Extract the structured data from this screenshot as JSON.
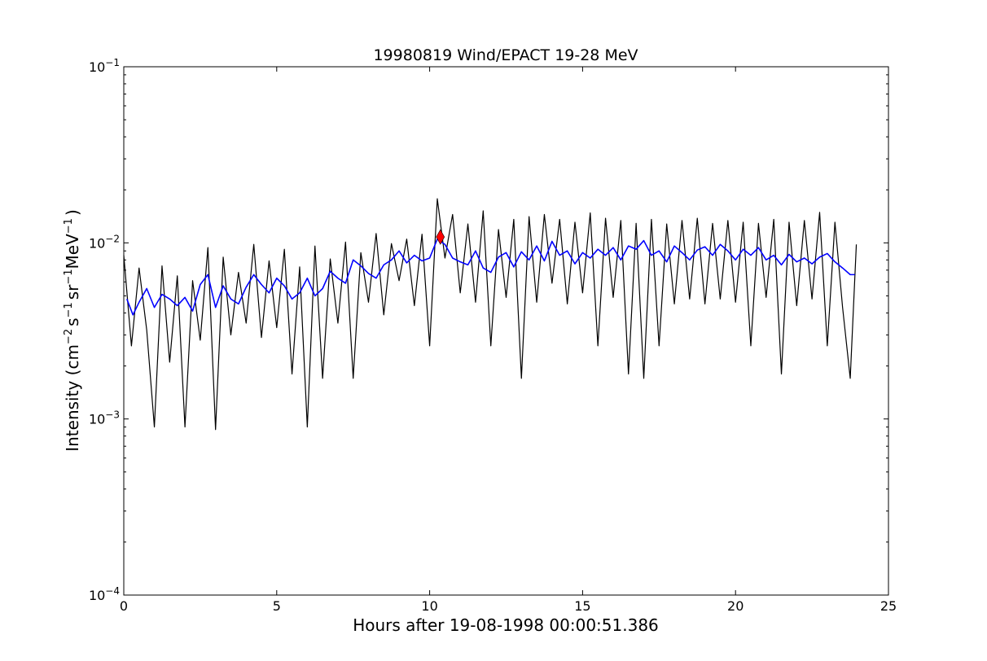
{
  "chart_data": {
    "type": "line",
    "title": "19980819 Wind/EPACT 19-28 MeV",
    "xlabel": "Hours after 19-08-1998 00:00:51.386",
    "ylabel": {
      "prefix": "Intensity (cm",
      "exp1": "−2",
      "s": "s",
      "exp2": "−1",
      "sr": "sr",
      "exp3": "−1",
      "mev": "MeV",
      "exp4": "−1",
      "suffix": ")"
    },
    "xlim": [
      0,
      25
    ],
    "ylim": [
      0.0001,
      0.1
    ],
    "yscale": "log",
    "grid": false,
    "x_ticks": [
      {
        "value": 0,
        "label": "0"
      },
      {
        "value": 5,
        "label": "5"
      },
      {
        "value": 10,
        "label": "10"
      },
      {
        "value": 15,
        "label": "15"
      },
      {
        "value": 20,
        "label": "20"
      },
      {
        "value": 25,
        "label": "25"
      }
    ],
    "y_ticks": [
      {
        "value": 0.0001,
        "base": "10",
        "exp": "−4"
      },
      {
        "value": 0.001,
        "base": "10",
        "exp": "−3"
      },
      {
        "value": 0.01,
        "base": "10",
        "exp": "−2"
      },
      {
        "value": 0.1,
        "base": "10",
        "exp": "−1"
      }
    ],
    "series": [
      {
        "color": "#000000",
        "x": [
          0.0,
          0.25,
          0.5,
          0.75,
          1.0,
          1.25,
          1.5,
          1.75,
          2.0,
          2.25,
          2.5,
          2.75,
          3.0,
          3.25,
          3.5,
          3.75,
          4.0,
          4.25,
          4.5,
          4.75,
          5.0,
          5.25,
          5.5,
          5.75,
          6.0,
          6.25,
          6.5,
          6.75,
          7.0,
          7.25,
          7.5,
          7.75,
          8.0,
          8.25,
          8.5,
          8.75,
          9.0,
          9.25,
          9.5,
          9.75,
          10.0,
          10.25,
          10.5,
          10.75,
          11.0,
          11.25,
          11.5,
          11.75,
          12.0,
          12.25,
          12.5,
          12.75,
          13.0,
          13.25,
          13.5,
          13.75,
          14.0,
          14.25,
          14.5,
          14.75,
          15.0,
          15.25,
          15.5,
          15.75,
          16.0,
          16.25,
          16.5,
          16.75,
          17.0,
          17.25,
          17.5,
          17.75,
          18.0,
          18.25,
          18.5,
          18.75,
          19.0,
          19.25,
          19.5,
          19.75,
          20.0,
          20.25,
          20.5,
          20.75,
          21.0,
          21.25,
          21.5,
          21.75,
          22.0,
          22.25,
          22.5,
          22.75,
          23.0,
          23.25,
          23.5,
          23.75,
          23.95
        ],
        "y": [
          0.0085,
          0.0026,
          0.0072,
          0.0032,
          0.0009,
          0.0074,
          0.0021,
          0.0065,
          0.0009,
          0.0061,
          0.0028,
          0.0094,
          0.00087,
          0.0083,
          0.003,
          0.0068,
          0.0035,
          0.0098,
          0.0029,
          0.0079,
          0.0033,
          0.0092,
          0.0018,
          0.0073,
          0.0009,
          0.0096,
          0.0017,
          0.0081,
          0.0035,
          0.0101,
          0.0017,
          0.0088,
          0.0046,
          0.0113,
          0.0039,
          0.0099,
          0.0061,
          0.0105,
          0.0044,
          0.0112,
          0.0026,
          0.0178,
          0.0082,
          0.0145,
          0.0052,
          0.0128,
          0.0046,
          0.0152,
          0.0026,
          0.0119,
          0.0049,
          0.0136,
          0.0017,
          0.0141,
          0.0046,
          0.0145,
          0.0059,
          0.0136,
          0.0045,
          0.0131,
          0.0052,
          0.0148,
          0.0026,
          0.0138,
          0.0049,
          0.0134,
          0.0018,
          0.0129,
          0.0017,
          0.0136,
          0.0026,
          0.0128,
          0.0045,
          0.0134,
          0.0048,
          0.0138,
          0.0045,
          0.0129,
          0.0048,
          0.0134,
          0.0046,
          0.0131,
          0.0026,
          0.0129,
          0.0049,
          0.0136,
          0.0018,
          0.0131,
          0.0044,
          0.0134,
          0.0048,
          0.0149,
          0.0026,
          0.0131,
          0.0043,
          0.0017,
          0.0098
        ]
      },
      {
        "color": "#0000ff",
        "x": [
          0.1,
          0.3,
          0.5,
          0.75,
          1.0,
          1.25,
          1.5,
          1.75,
          2.0,
          2.25,
          2.5,
          2.75,
          3.0,
          3.25,
          3.5,
          3.75,
          4.0,
          4.25,
          4.5,
          4.75,
          5.0,
          5.25,
          5.5,
          5.75,
          6.0,
          6.25,
          6.5,
          6.75,
          7.0,
          7.25,
          7.5,
          7.75,
          8.0,
          8.25,
          8.5,
          8.75,
          9.0,
          9.25,
          9.5,
          9.75,
          10.0,
          10.25,
          10.5,
          10.75,
          11.0,
          11.25,
          11.5,
          11.75,
          12.0,
          12.25,
          12.5,
          12.75,
          13.0,
          13.25,
          13.5,
          13.75,
          14.0,
          14.25,
          14.5,
          14.75,
          15.0,
          15.25,
          15.5,
          15.75,
          16.0,
          16.25,
          16.5,
          16.75,
          17.0,
          17.25,
          17.5,
          17.75,
          18.0,
          18.25,
          18.5,
          18.75,
          19.0,
          19.25,
          19.5,
          19.75,
          20.0,
          20.25,
          20.5,
          20.75,
          21.0,
          21.25,
          21.5,
          21.75,
          22.0,
          22.25,
          22.5,
          22.75,
          23.0,
          23.25,
          23.5,
          23.75,
          23.9
        ],
        "y": [
          0.0048,
          0.0039,
          0.0046,
          0.0055,
          0.0043,
          0.0051,
          0.0048,
          0.0044,
          0.0049,
          0.0041,
          0.0058,
          0.0066,
          0.0043,
          0.0057,
          0.0048,
          0.0045,
          0.0056,
          0.0066,
          0.0058,
          0.0052,
          0.0063,
          0.0057,
          0.0048,
          0.0052,
          0.0063,
          0.005,
          0.0055,
          0.0069,
          0.0063,
          0.0059,
          0.008,
          0.0074,
          0.0067,
          0.0063,
          0.0075,
          0.008,
          0.009,
          0.0077,
          0.0085,
          0.0079,
          0.0082,
          0.0105,
          0.0098,
          0.0082,
          0.0078,
          0.0075,
          0.009,
          0.0072,
          0.0068,
          0.0083,
          0.0088,
          0.0073,
          0.0089,
          0.008,
          0.0096,
          0.0079,
          0.0102,
          0.0085,
          0.009,
          0.0076,
          0.0088,
          0.0082,
          0.0092,
          0.0085,
          0.0094,
          0.008,
          0.0096,
          0.0092,
          0.0103,
          0.0085,
          0.009,
          0.0078,
          0.0096,
          0.0088,
          0.008,
          0.0091,
          0.0095,
          0.0085,
          0.0098,
          0.009,
          0.008,
          0.0092,
          0.0085,
          0.0094,
          0.008,
          0.0085,
          0.0075,
          0.0086,
          0.0078,
          0.0082,
          0.0076,
          0.0083,
          0.0087,
          0.0078,
          0.0072,
          0.0066,
          0.0066
        ]
      }
    ],
    "marker": {
      "x": 10.35,
      "y": 0.0108,
      "shape": "diamond",
      "color": "#ff0000"
    }
  }
}
